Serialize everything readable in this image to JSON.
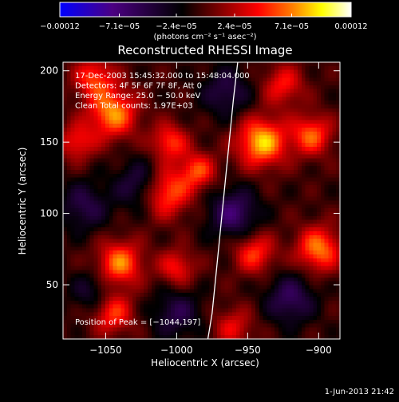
{
  "chart_data": {
    "type": "heatmap",
    "title": "Reconstructed RHESSI Image",
    "xlabel": "Heliocentric X (arcsec)",
    "ylabel": "Heliocentric Y (arcsec)",
    "xlim": [
      -1080,
      -885
    ],
    "ylim": [
      12,
      206
    ],
    "x_ticks": [
      -1050,
      -1000,
      -950,
      -900
    ],
    "x_tick_labels": [
      "−1050",
      "−1000",
      "−950",
      "−900"
    ],
    "y_ticks": [
      50,
      100,
      150,
      200
    ],
    "y_tick_labels": [
      "50",
      "100",
      "150",
      "200"
    ],
    "colorbar": {
      "ticks": [
        -0.00012,
        -7.1e-05,
        -2.4e-05,
        2.4e-05,
        7.1e-05,
        0.00012
      ],
      "tick_labels": [
        "−0.00012",
        "−7.1e−05",
        "−2.4e−05",
        "2.4e−05",
        "7.1e−05",
        "0.00012"
      ],
      "unit_label": "(photons cm⁻² s⁻¹ asec⁻²)",
      "range": [
        -0.00012,
        0.00012
      ],
      "colors": [
        "#0000ff",
        "#4b0082",
        "#000000",
        "#800000",
        "#ff0000",
        "#ff8000",
        "#ffff00",
        "#ffffff"
      ]
    },
    "annotations": [
      "17-Dec-2003 15:45:32.000 to 15:48:04.000",
      "Detectors: 4F 5F 6F 7F 8F, Att 0",
      "Energy Range: 25.0 − 50.0 keV",
      "Clean     Total counts: 1.97E+03"
    ],
    "peak_label": "Position of Peak = [−1044,197]",
    "peak": [
      -1044,
      197
    ],
    "limb_x": [
      -957,
      -960,
      -964,
      -968,
      -972,
      -975,
      -978
    ],
    "limb_y": [
      206,
      180,
      140,
      100,
      60,
      30,
      12
    ],
    "sources": [
      {
        "x": -1045,
        "y": 170,
        "amp": 9.5e-05,
        "w": 12
      },
      {
        "x": -1058,
        "y": 195,
        "amp": 7e-05,
        "w": 10
      },
      {
        "x": -1070,
        "y": 150,
        "amp": 6e-05,
        "w": 9
      },
      {
        "x": -1005,
        "y": 150,
        "amp": 7e-05,
        "w": 9
      },
      {
        "x": -1008,
        "y": 115,
        "amp": 9e-05,
        "w": 12
      },
      {
        "x": -1040,
        "y": 65,
        "amp": 9e-05,
        "w": 11
      },
      {
        "x": -1045,
        "y": 30,
        "amp": 7e-05,
        "w": 10
      },
      {
        "x": -1000,
        "y": 62,
        "amp": 6e-05,
        "w": 9
      },
      {
        "x": -985,
        "y": 130,
        "amp": 7e-05,
        "w": 9
      },
      {
        "x": -940,
        "y": 150,
        "amp": 0.00011,
        "w": 12
      },
      {
        "x": -905,
        "y": 155,
        "amp": 8e-05,
        "w": 10
      },
      {
        "x": -925,
        "y": 190,
        "amp": 6e-05,
        "w": 10
      },
      {
        "x": -900,
        "y": 75,
        "amp": 9e-05,
        "w": 11
      },
      {
        "x": -945,
        "y": 72,
        "amp": 7e-05,
        "w": 10
      },
      {
        "x": -960,
        "y": 20,
        "amp": 5e-05,
        "w": 10
      },
      {
        "x": -1025,
        "y": 120,
        "amp": -6e-05,
        "w": 12
      },
      {
        "x": -960,
        "y": 100,
        "amp": -7e-05,
        "w": 12
      },
      {
        "x": -965,
        "y": 185,
        "amp": -5e-05,
        "w": 12
      },
      {
        "x": -1065,
        "y": 105,
        "amp": -5e-05,
        "w": 12
      },
      {
        "x": -920,
        "y": 40,
        "amp": -6e-05,
        "w": 12
      },
      {
        "x": -1060,
        "y": 45,
        "amp": -4e-05,
        "w": 10
      },
      {
        "x": -1000,
        "y": 30,
        "amp": -5e-05,
        "w": 12
      }
    ]
  },
  "footer": {
    "timestamp": "1-Jun-2013 21:42"
  }
}
